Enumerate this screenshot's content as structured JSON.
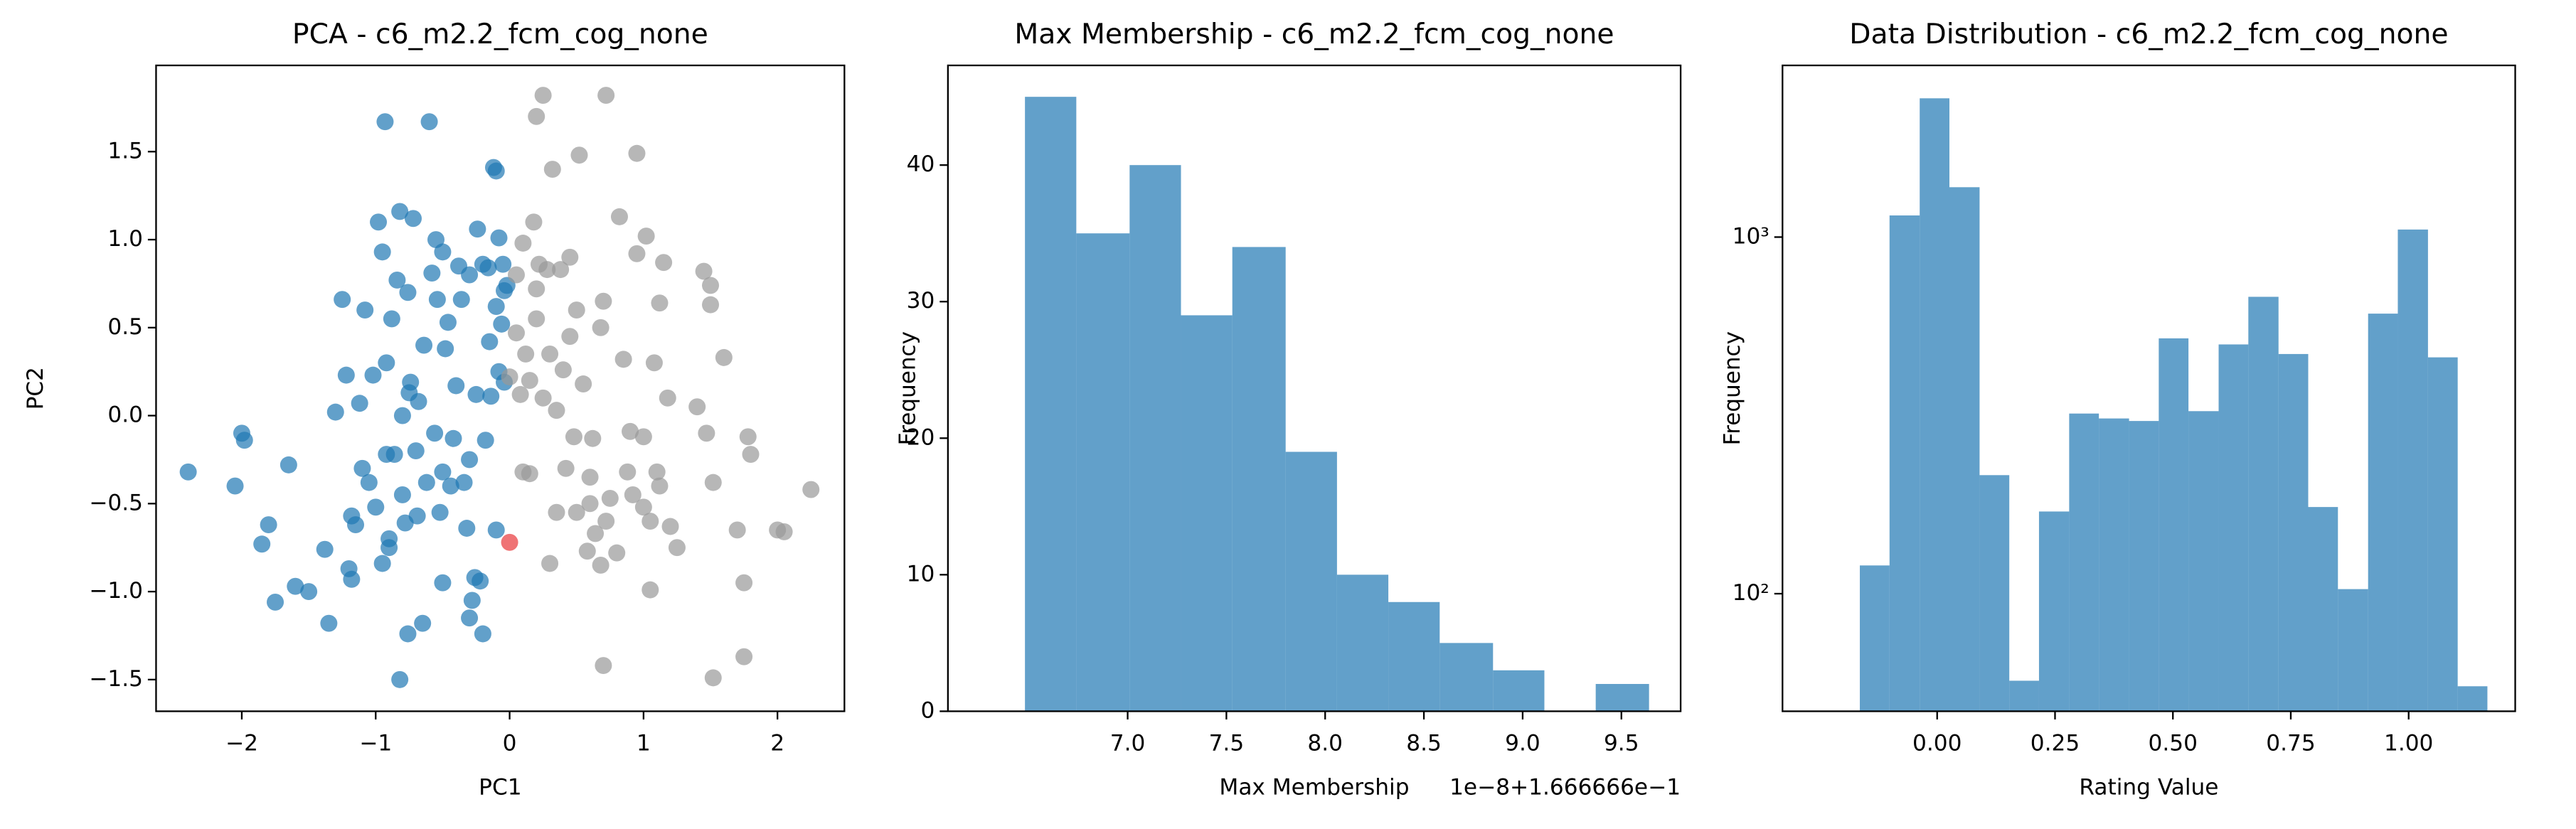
{
  "chart_data": [
    {
      "type": "scatter",
      "title": "PCA - c6_m2.2_fcm_cog_none",
      "xlabel": "PC1",
      "ylabel": "PC2",
      "xlim": [
        -2.64,
        2.5
      ],
      "ylim": [
        -1.68,
        1.99
      ],
      "xticks": [
        {
          "value": -2,
          "label": "−2"
        },
        {
          "value": -1,
          "label": "−1"
        },
        0,
        1,
        2
      ],
      "yticks": [
        {
          "value": -1.5,
          "label": "−1.5"
        },
        {
          "value": -1.0,
          "label": "−1.0"
        },
        {
          "value": -0.5,
          "label": "−0.5"
        },
        {
          "value": 0.0,
          "label": "0.0"
        },
        0.5,
        {
          "value": 1.0,
          "label": "1.0"
        },
        1.5
      ],
      "series": [
        {
          "color": "#1f77b4",
          "x": [
            -2.4,
            -2.05,
            -2.0,
            -1.98,
            -1.85,
            -1.8,
            -1.75,
            -1.6,
            -1.65,
            -1.5,
            -1.38,
            -1.35,
            -1.3,
            -1.25,
            -1.22,
            -1.2,
            -1.18,
            -1.18,
            -1.15,
            -1.12,
            -1.1,
            -1.08,
            -1.05,
            -1.02,
            -1.0,
            -0.98,
            -0.95,
            -0.95,
            -0.92,
            -0.92,
            -0.9,
            -0.9,
            -0.93,
            -0.88,
            -0.86,
            -0.84,
            -0.82,
            -0.8,
            -0.8,
            -0.78,
            -0.76,
            -0.82,
            -0.76,
            -0.75,
            -0.74,
            -0.72,
            -0.7,
            -0.69,
            -0.68,
            -0.65,
            -0.64,
            -0.62,
            -0.6,
            -0.58,
            -0.56,
            -0.55,
            -0.54,
            -0.52,
            -0.5,
            -0.5,
            -0.5,
            -0.48,
            -0.46,
            -0.44,
            -0.42,
            -0.4,
            -0.38,
            -0.36,
            -0.34,
            -0.32,
            -0.3,
            -0.3,
            -0.28,
            -0.26,
            -0.25,
            -0.24,
            -0.22,
            -0.2,
            -0.2,
            -0.18,
            -0.16,
            -0.15,
            -0.14,
            -0.12,
            -0.1,
            -0.1,
            -0.1,
            -0.08,
            -0.08,
            -0.06,
            -0.05,
            -0.04,
            -0.04,
            -0.02,
            -0.3
          ],
          "values": [
            -0.32,
            -0.4,
            -0.1,
            -0.14,
            -0.73,
            -0.62,
            -1.06,
            -0.97,
            -0.28,
            -1.0,
            -0.76,
            -1.18,
            0.02,
            0.66,
            0.23,
            -0.87,
            -0.57,
            -0.93,
            -0.62,
            0.07,
            -0.3,
            0.6,
            -0.38,
            0.23,
            -0.52,
            1.1,
            0.93,
            -0.84,
            0.3,
            -0.22,
            -0.7,
            -0.75,
            1.67,
            0.55,
            -0.22,
            0.77,
            1.16,
            -0.45,
            0.0,
            -0.61,
            -1.24,
            -1.5,
            0.7,
            0.13,
            0.19,
            1.12,
            -0.2,
            -0.57,
            0.08,
            -1.18,
            0.4,
            -0.38,
            1.67,
            0.81,
            -0.1,
            1.0,
            0.66,
            -0.55,
            -0.32,
            0.93,
            -0.95,
            0.38,
            0.53,
            -0.4,
            -0.13,
            0.17,
            0.85,
            0.66,
            -0.38,
            -0.64,
            0.8,
            -0.25,
            -1.05,
            -0.92,
            0.12,
            1.06,
            -0.94,
            0.86,
            -1.24,
            -0.14,
            0.84,
            0.42,
            0.11,
            1.41,
            1.39,
            0.62,
            -0.65,
            0.25,
            1.01,
            0.52,
            0.86,
            0.71,
            0.19,
            0.74,
            -1.15
          ]
        },
        {
          "color": "#999999",
          "x": [
            0.05,
            0.08,
            0.1,
            0.1,
            0.12,
            0.15,
            0.15,
            0.18,
            0.2,
            0.22,
            0.25,
            0.28,
            0.3,
            0.3,
            0.32,
            0.35,
            0.35,
            0.38,
            0.4,
            0.42,
            0.45,
            0.45,
            0.48,
            0.5,
            0.5,
            0.52,
            0.55,
            0.58,
            0.6,
            0.6,
            0.62,
            0.64,
            0.68,
            0.68,
            0.7,
            0.7,
            0.72,
            0.72,
            0.75,
            0.8,
            0.82,
            0.85,
            0.88,
            0.9,
            0.92,
            0.95,
            0.95,
            1.0,
            1.0,
            1.02,
            1.05,
            1.05,
            1.08,
            1.1,
            1.12,
            1.12,
            1.15,
            1.18,
            1.2,
            1.25,
            1.4,
            1.45,
            1.47,
            1.5,
            1.5,
            1.52,
            1.52,
            1.6,
            1.7,
            1.75,
            1.75,
            1.78,
            1.8,
            2.0,
            2.05,
            2.25,
            0.2,
            0.25,
            0.0,
            0.05,
            0.2
          ],
          "values": [
            0.47,
            0.12,
            -0.32,
            0.98,
            0.35,
            0.2,
            -0.33,
            1.1,
            0.55,
            0.86,
            0.1,
            0.83,
            0.35,
            -0.84,
            1.4,
            0.03,
            -0.55,
            0.83,
            0.26,
            -0.3,
            0.45,
            0.9,
            -0.12,
            -0.55,
            0.6,
            1.48,
            0.18,
            -0.77,
            -0.35,
            -0.5,
            -0.13,
            -0.67,
            0.5,
            -0.85,
            0.65,
            -1.42,
            1.82,
            -0.6,
            -0.47,
            -0.78,
            1.13,
            0.32,
            -0.32,
            -0.09,
            -0.45,
            1.49,
            0.92,
            -0.52,
            -0.12,
            1.02,
            -0.6,
            -0.99,
            0.3,
            -0.32,
            0.64,
            -0.4,
            0.87,
            0.1,
            -0.63,
            -0.75,
            0.05,
            0.82,
            -0.1,
            0.74,
            0.63,
            -0.38,
            -1.49,
            0.33,
            -0.65,
            -0.95,
            -1.37,
            -0.12,
            -0.22,
            -0.65,
            -0.66,
            -0.42,
            1.7,
            1.82,
            0.22,
            0.8,
            0.72
          ]
        },
        {
          "color": "#e8383b",
          "x": [
            0.0
          ],
          "values": [
            -0.72
          ]
        }
      ]
    },
    {
      "type": "histogram",
      "title": "Max Membership - c6_m2.2_fcm_cog_none",
      "xlabel": "Max Membership",
      "ylabel": "Frequency",
      "offset_text": "1e−8+1.666666e−1",
      "color": "#1f77b4",
      "xlim": [
        6.09,
        9.8
      ],
      "ylim": [
        0,
        47.3
      ],
      "xticks": [
        {
          "value": 7.0,
          "label": "7.0"
        },
        7.5,
        {
          "value": 8.0,
          "label": "8.0"
        },
        8.5,
        {
          "value": 9.0,
          "label": "9.0"
        },
        9.5
      ],
      "yticks": [
        0,
        10,
        20,
        30,
        40
      ],
      "bins": [
        6.48,
        6.74,
        7.01,
        7.27,
        7.53,
        7.8,
        8.06,
        8.32,
        8.58,
        8.85,
        9.11,
        9.37,
        9.64
      ],
      "values": [
        45,
        35,
        40,
        29,
        34,
        19,
        10,
        8,
        5,
        3,
        0,
        2
      ]
    },
    {
      "type": "histogram",
      "title": "Data Distribution - c6_m2.2_fcm_cog_none",
      "xlabel": "Rating Value",
      "ylabel": "Frequency",
      "yscale": "log",
      "color": "#1f77b4",
      "xlim": [
        -0.328,
        1.226
      ],
      "ylim": [
        46.8,
        3030
      ],
      "xticks": [
        {
          "value": 0,
          "label": "0.00"
        },
        {
          "value": 0.25,
          "label": "0.25"
        },
        {
          "value": 0.5,
          "label": "0.50"
        },
        {
          "value": 0.75,
          "label": "0.75"
        },
        {
          "value": 1,
          "label": "1.00"
        }
      ],
      "yticks": [
        {
          "value": 100,
          "label": "10²"
        },
        {
          "value": 1000,
          "label": "10³"
        }
      ],
      "bins": [
        -0.164,
        -0.101,
        -0.037,
        0.026,
        0.09,
        0.153,
        0.216,
        0.28,
        0.343,
        0.407,
        0.47,
        0.533,
        0.597,
        0.66,
        0.724,
        0.787,
        0.85,
        0.914,
        0.977,
        1.041,
        1.104,
        1.167
      ],
      "values": [
        120,
        1150,
        2450,
        1380,
        215,
        57,
        170,
        320,
        310,
        305,
        520,
        325,
        500,
        680,
        470,
        175,
        103,
        610,
        1050,
        460,
        55
      ]
    }
  ]
}
